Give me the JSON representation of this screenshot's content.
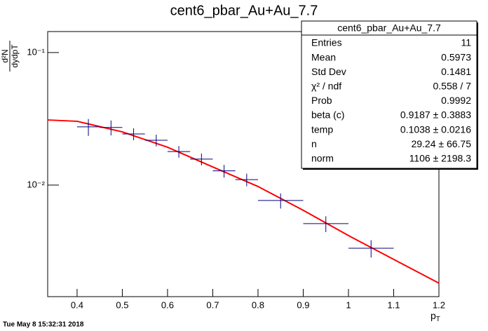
{
  "chart_data": {
    "type": "errorbar",
    "title": "cent6_pbar_Au+Au_7.7",
    "x_label": "pT",
    "y_label": {
      "numerator": "d²N",
      "denominator": "dydpT"
    },
    "log_y": true,
    "xlim": [
      0.335,
      1.2
    ],
    "ylim": [
      0.00144,
      0.144
    ],
    "xticks": [
      0.4,
      0.5,
      0.6,
      0.7,
      0.8,
      0.9,
      1,
      1.1,
      1.2
    ],
    "yticks": [
      {
        "value": 0.1,
        "label": "10⁻¹"
      },
      {
        "value": 0.01,
        "label": "10⁻²"
      }
    ],
    "series": [
      {
        "name": "cent6_pbar_Au+Au_7.7",
        "color": "#000080",
        "x": [
          0.425,
          0.475,
          0.525,
          0.575,
          0.625,
          0.675,
          0.725,
          0.775,
          0.85,
          0.95,
          1.05
        ],
        "xerr": [
          0.025,
          0.025,
          0.025,
          0.025,
          0.025,
          0.025,
          0.025,
          0.025,
          0.05,
          0.05,
          0.05
        ],
        "values": [
          0.0275,
          0.0272,
          0.0243,
          0.0218,
          0.0179,
          0.0157,
          0.0128,
          0.011,
          0.00765,
          0.00512,
          0.00334
        ],
        "errors": [
          0.004,
          0.0035,
          0.0025,
          0.0022,
          0.0018,
          0.0016,
          0.0014,
          0.0012,
          0.001,
          0.0007,
          0.0005
        ]
      }
    ],
    "fit": {
      "color": "#ff0000",
      "x": [
        0.335,
        0.4,
        0.5,
        0.6,
        0.7,
        0.8,
        0.9,
        1.0,
        1.1,
        1.2
      ],
      "values": [
        0.031,
        0.0303,
        0.0252,
        0.0193,
        0.0137,
        0.00976,
        0.00645,
        0.00416,
        0.00275,
        0.00182
      ]
    },
    "stats": {
      "title": "cent6_pbar_Au+Au_7.7",
      "rows": [
        [
          "Entries",
          "11"
        ],
        [
          "Mean",
          "0.5973"
        ],
        [
          "Std Dev",
          "0.1481"
        ],
        [
          "χ² / ndf",
          "0.558 / 7"
        ],
        [
          "Prob",
          "0.9992"
        ],
        [
          "beta (c)",
          "0.9187  ± 0.3883"
        ],
        [
          "temp",
          "0.1038  ± 0.0216"
        ],
        [
          "n",
          "29.24  ± 66.75"
        ],
        [
          "norm",
          "1106  ± 2198.3"
        ]
      ]
    },
    "timestamp": "Tue May  8 15:32:31 2018"
  }
}
